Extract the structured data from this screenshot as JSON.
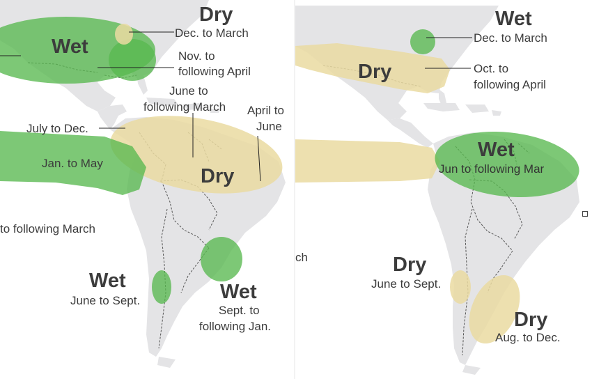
{
  "left_map": {
    "labels": {
      "dry_top": "Dry",
      "dec_march": "Dec. to March",
      "wet_top": "Wet",
      "nov_april_1": "Nov. to",
      "nov_april_2": "following April",
      "june_march_1": "June to",
      "june_march_2": "following March",
      "april_june_1": "April to",
      "april_june_2": "June",
      "july_dec": "July to Dec.",
      "jan_may": "Jan. to May",
      "dry_center": "Dry",
      "to_following_march": "to following March",
      "wet_chile": "Wet",
      "june_sept": "June to Sept.",
      "wet_se": "Wet",
      "sept_jan_1": "Sept. to",
      "sept_jan_2": "following Jan."
    }
  },
  "right_map": {
    "labels": {
      "wet_top": "Wet",
      "dec_march": "Dec. to March",
      "dry_us": "Dry",
      "oct_april_1": "Oct. to",
      "oct_april_2": "following April",
      "wet_center": "Wet",
      "jun_mar": "Jun to following Mar",
      "ch_fragment": "ch",
      "dry_chile": "Dry",
      "june_sept": "June to Sept.",
      "dry_se": "Dry",
      "aug_dec": "Aug. to Dec."
    }
  },
  "colors": {
    "wet": "#58b94f",
    "dry": "#eadba1",
    "land": "#e4e4e6",
    "text": "#3c3c3c"
  }
}
